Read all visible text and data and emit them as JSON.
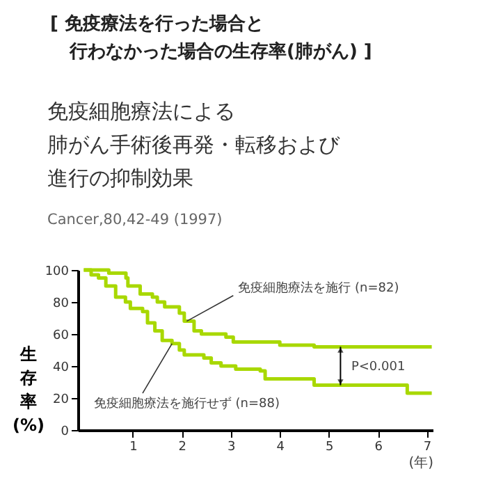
{
  "chart_data": {
    "type": "step",
    "title": "[ 免疫療法を行った場合と行わなかった場合の生存率(肺がん) ]",
    "subtitle": "免疫細胞療法による肺がん手術後再発・転移および進行の抑制効果",
    "xlabel": "(年)",
    "ylabel": "生存率(%)",
    "annotations": [
      "Cancer,80,42-49 (1997)",
      {
        "text": "免疫細胞療法を施行 (n=82)",
        "x": 2.1,
        "y": 68
      },
      {
        "text": "免疫細胞療法を施行せず (n=88)",
        "x": 1.8,
        "y": 54
      },
      "P<0.001"
    ],
    "xlim": [
      -0.12,
      7.12
    ],
    "ylim": [
      0,
      100
    ],
    "xticks": [
      1,
      2,
      3,
      4,
      5,
      6,
      7
    ],
    "yticks": [
      0,
      20,
      40,
      60,
      80,
      100
    ],
    "grid": false,
    "legend": false,
    "marker": "none",
    "line_style": "solid",
    "series": [
      {
        "color": "#a8d800",
        "x": [
          0,
          0.51,
          0.86,
          0.9,
          1.15,
          1.4,
          1.5,
          1.65,
          1.95,
          2.05,
          2.25,
          2.4,
          2.9,
          3.05,
          4.0,
          4.7,
          7.1
        ],
        "values": [
          100,
          98,
          95,
          90,
          85,
          83,
          80,
          77,
          73,
          68,
          62,
          60,
          58,
          55,
          53,
          52,
          52
        ]
      },
      {
        "color": "#a8d800",
        "x": [
          0,
          0.15,
          0.3,
          0.45,
          0.65,
          0.85,
          0.95,
          1.2,
          1.3,
          1.45,
          1.6,
          1.8,
          1.95,
          2.05,
          2.45,
          2.6,
          2.8,
          3.1,
          3.6,
          3.7,
          4.7,
          6.6,
          7.1
        ],
        "values": [
          100,
          97,
          95,
          90,
          83,
          80,
          76,
          74,
          67,
          62,
          56,
          54,
          50,
          47,
          45,
          42,
          40,
          38,
          37,
          32,
          28,
          23,
          23
        ]
      }
    ]
  }
}
